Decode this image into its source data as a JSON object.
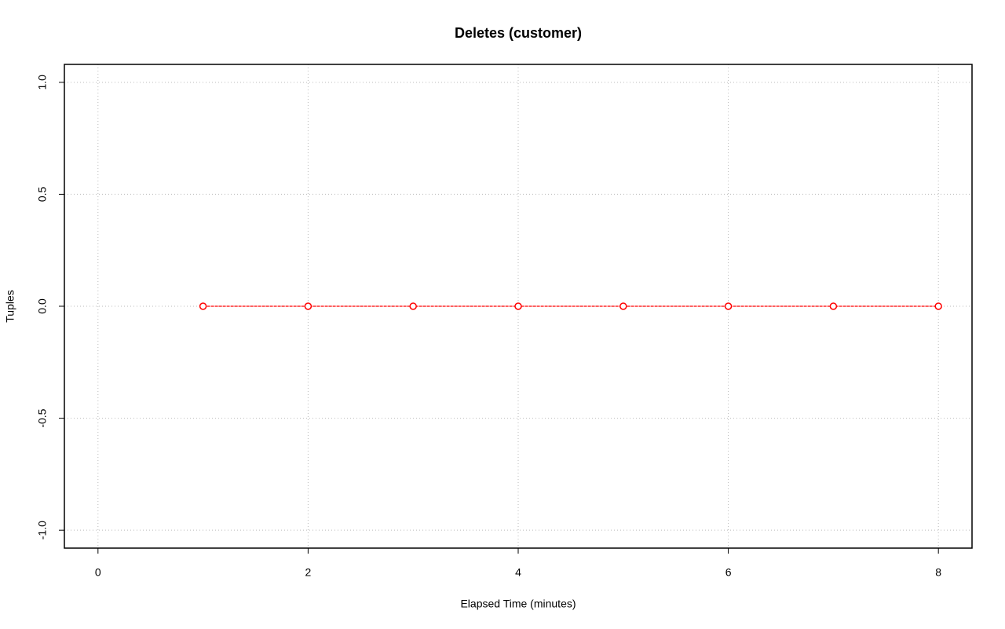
{
  "chart_data": {
    "type": "line",
    "title": "Deletes (customer)",
    "x_label": "Elapsed Time (minutes)",
    "y_label": "Tuples",
    "x": [
      1,
      2,
      3,
      4,
      5,
      6,
      7,
      8
    ],
    "values": [
      0,
      0,
      0,
      0,
      0,
      0,
      0,
      0
    ],
    "color": "#ff0000",
    "xlim": [
      -0.32,
      8.32
    ],
    "xticks": [
      0,
      2,
      4,
      6,
      8
    ],
    "ylim": [
      -1.08,
      1.08
    ],
    "yticks": [
      {
        "value": -1,
        "label": "-1.0"
      },
      {
        "value": -0.5,
        "label": "-0.5"
      },
      {
        "value": 0,
        "label": "0.0"
      },
      {
        "value": 0.5,
        "label": "0.5"
      },
      {
        "value": 1,
        "label": "1.0"
      }
    ],
    "grid": true
  }
}
